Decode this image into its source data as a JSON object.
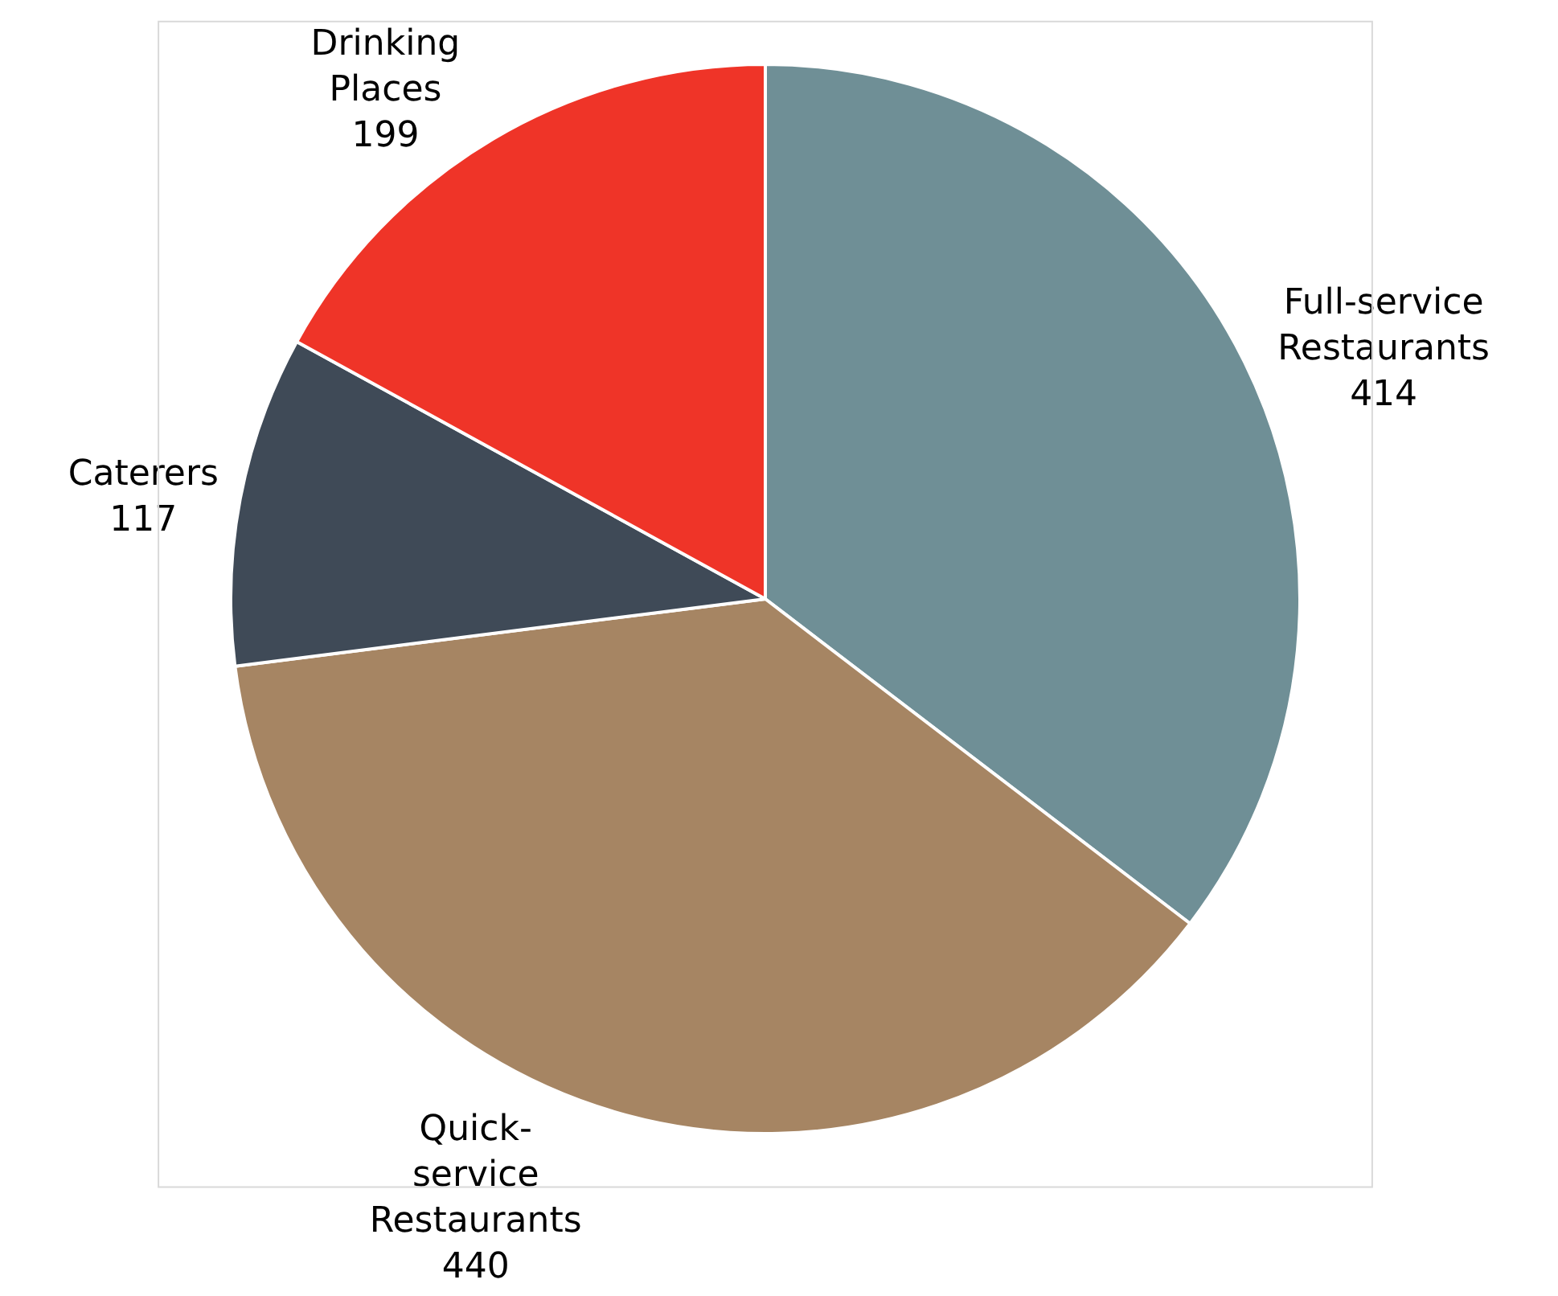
{
  "chart_data": {
    "type": "pie",
    "categories": [
      "Full-service Restaurants",
      "Quick-service Restaurants",
      "Caterers",
      "Drinking Places"
    ],
    "values": [
      414,
      440,
      117,
      199
    ],
    "colors": [
      "#6f8f96",
      "#a68563",
      "#3f4a57",
      "#ef3428"
    ],
    "data_labels": true,
    "legend": false
  }
}
